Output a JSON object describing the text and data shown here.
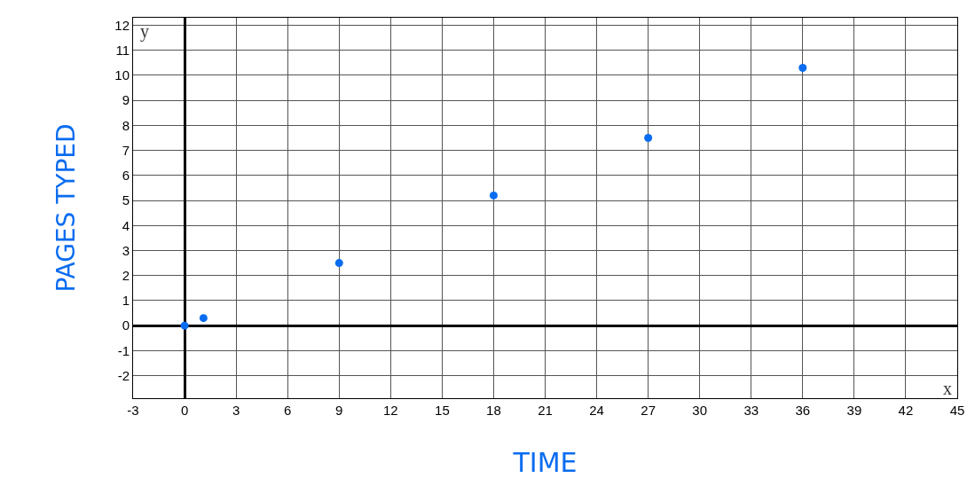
{
  "chart_data": {
    "type": "scatter",
    "xlabel": "TIME",
    "ylabel": "PAGES TYPED",
    "annotations": [
      "x",
      "y"
    ],
    "series": [
      {
        "color": "#0a6cf0",
        "x": [
          0,
          1.1,
          9,
          18,
          27,
          36
        ],
        "values": [
          0,
          0.3,
          2.5,
          5.2,
          7.5,
          10.3
        ]
      }
    ],
    "xlim": [
      -3,
      45
    ],
    "xticks": [
      -3,
      0,
      3,
      6,
      9,
      12,
      15,
      18,
      21,
      24,
      27,
      30,
      33,
      36,
      39,
      42,
      45
    ],
    "ylim": [
      -2.9,
      12.3
    ],
    "yticks": [
      -2,
      -1,
      0,
      1,
      2,
      3,
      4,
      5,
      6,
      7,
      8,
      9,
      10,
      11,
      12
    ],
    "grid": true,
    "marker": "circle"
  }
}
